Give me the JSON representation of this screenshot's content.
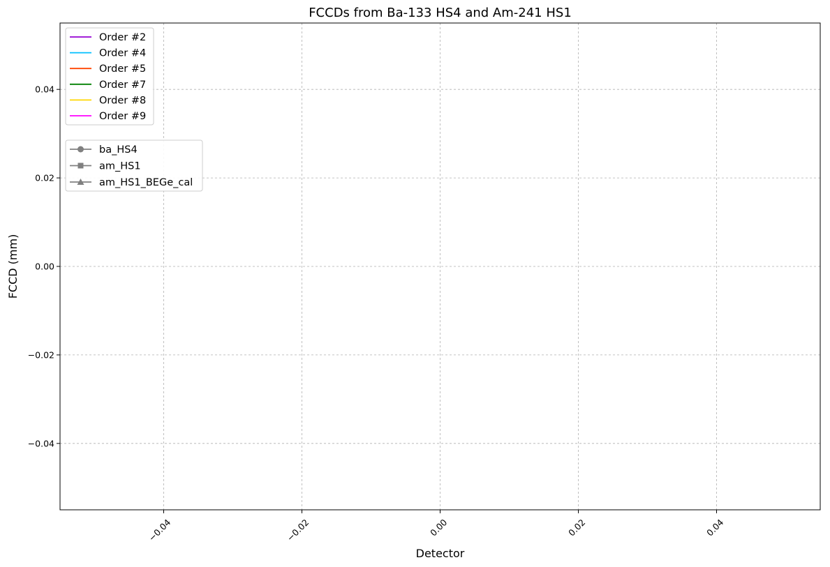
{
  "chart_data": {
    "type": "line",
    "title": "FCCDs from Ba-133 HS4 and Am-241 HS1",
    "xlabel": "Detector",
    "ylabel": "FCCD (mm)",
    "xlim": [
      -0.055,
      0.055
    ],
    "ylim": [
      -0.055,
      0.055
    ],
    "xticks": [
      -0.04,
      -0.02,
      0.0,
      0.02,
      0.04
    ],
    "xtick_labels": [
      "−0.04",
      "−0.02",
      "0.00",
      "0.02",
      "0.04"
    ],
    "yticks": [
      -0.04,
      -0.02,
      0.0,
      0.02,
      0.04
    ],
    "ytick_labels": [
      "−0.04",
      "−0.02",
      "0.00",
      "0.02",
      "0.04"
    ],
    "xtick_rotation": 45,
    "grid": true,
    "categories": [],
    "series": [],
    "legends": [
      {
        "placement": "upper-left",
        "entries": [
          {
            "label": "Order #2",
            "color": "#9400d3",
            "marker": "none"
          },
          {
            "label": "Order #4",
            "color": "#00bfff",
            "marker": "none"
          },
          {
            "label": "Order #5",
            "color": "#ff4500",
            "marker": "none"
          },
          {
            "label": "Order #7",
            "color": "#008000",
            "marker": "none"
          },
          {
            "label": "Order #8",
            "color": "#ffd700",
            "marker": "none"
          },
          {
            "label": "Order #9",
            "color": "#ff00ff",
            "marker": "none"
          }
        ]
      },
      {
        "placement": "upper-left-below",
        "entries": [
          {
            "label": "ba_HS4",
            "color": "#808080",
            "marker": "circle"
          },
          {
            "label": "am_HS1",
            "color": "#808080",
            "marker": "square"
          },
          {
            "label": "am_HS1_BEGe_cal",
            "color": "#808080",
            "marker": "triangle"
          }
        ]
      }
    ]
  }
}
